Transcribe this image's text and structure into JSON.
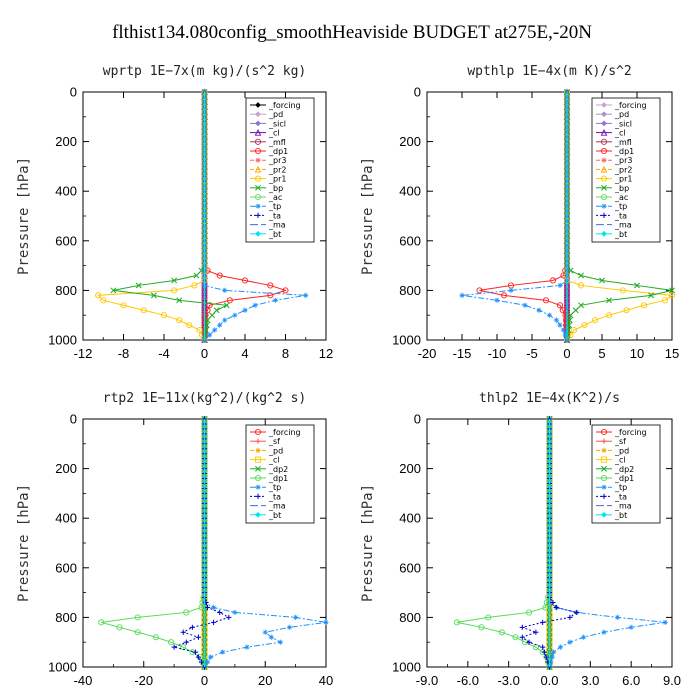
{
  "title": "flthist134.080config_smoothHeaviside  BUDGET at275E,-20N",
  "chart_data": [
    {
      "type": "line",
      "panel": "top-left",
      "title": "wprtp  1E−7x(m kg)/(s^2 kg)",
      "ylabel": "Pressure [hPa]",
      "xlim": [
        -12,
        12
      ],
      "ylim": [
        1000,
        0
      ],
      "xticks": [
        "-12",
        "-8",
        "-4",
        "0",
        "4",
        "8",
        "12"
      ],
      "yticks": [
        "0",
        "200",
        "400",
        "600",
        "800",
        "1000"
      ],
      "legend_position": "top-right",
      "series": [
        {
          "name": "_forcing",
          "color": "#000000",
          "dash": "",
          "marker": "diamond",
          "p": [
            0,
            1000
          ],
          "v": [
            0,
            0
          ]
        },
        {
          "name": "_pd",
          "color": "#c8a2c8",
          "dash": "",
          "marker": "diamond",
          "p": [
            0,
            1000
          ],
          "v": [
            0,
            0
          ]
        },
        {
          "name": "_sicl",
          "color": "#9370db",
          "dash": "",
          "marker": "diamond",
          "p": [
            0,
            1000
          ],
          "v": [
            0,
            0
          ]
        },
        {
          "name": "_cl",
          "color": "#6a0dad",
          "dash": "",
          "marker": "triangle",
          "p": [
            0,
            1000
          ],
          "v": [
            0,
            0
          ]
        },
        {
          "name": "_mfl",
          "color": "#b03060",
          "dash": "",
          "marker": "circle",
          "p": [
            0,
            1000
          ],
          "v": [
            0,
            0
          ]
        },
        {
          "name": "_dp1",
          "color": "#ff2020",
          "dash": "",
          "marker": "circle",
          "p": [
            700,
            720,
            740,
            760,
            780,
            800,
            820,
            840,
            860,
            900,
            1000
          ],
          "v": [
            0,
            0.3,
            1.5,
            4.0,
            6.5,
            8.0,
            6.5,
            2.5,
            0.5,
            0.1,
            0
          ]
        },
        {
          "name": "_pr3",
          "color": "#ff6060",
          "dash": "4,2",
          "marker": "star",
          "p": [
            0,
            1000
          ],
          "v": [
            0,
            0
          ]
        },
        {
          "name": "_pr2",
          "color": "#ffa500",
          "dash": "4,2",
          "marker": "triangle",
          "p": [
            0,
            1000
          ],
          "v": [
            0,
            0
          ]
        },
        {
          "name": "_pr1",
          "color": "#ffc800",
          "dash": "",
          "marker": "circle",
          "p": [
            700,
            760,
            780,
            800,
            820,
            840,
            860,
            880,
            900,
            920,
            940,
            960,
            1000
          ],
          "v": [
            0,
            0,
            -1.0,
            -3.0,
            -10.5,
            -10.0,
            -8.0,
            -6.0,
            -4.0,
            -2.5,
            -1.5,
            -0.5,
            0
          ]
        },
        {
          "name": "_bp",
          "color": "#1faa1f",
          "dash": "",
          "marker": "x",
          "p": [
            700,
            720,
            740,
            760,
            780,
            800,
            820,
            840,
            860,
            880,
            920,
            1000
          ],
          "v": [
            0,
            -0.3,
            -0.8,
            -3.0,
            -6.5,
            -9.0,
            -5.0,
            -2.5,
            2.2,
            1.2,
            0.3,
            0
          ]
        },
        {
          "name": "_ac",
          "color": "#66dd66",
          "dash": "",
          "marker": "circle",
          "p": [
            0,
            1000
          ],
          "v": [
            0,
            0
          ]
        },
        {
          "name": "_tp",
          "color": "#1e90ff",
          "dash": "6,2,2,2",
          "marker": "star",
          "p": [
            780,
            800,
            820,
            840,
            860,
            880,
            900,
            920,
            960,
            1000
          ],
          "v": [
            0,
            2.0,
            10.0,
            7.0,
            5.0,
            4.0,
            3.0,
            2.0,
            1.0,
            0
          ]
        },
        {
          "name": "_ta",
          "color": "#0000cd",
          "dash": "2,2",
          "marker": "plus",
          "p": [
            0,
            1000
          ],
          "v": [
            0,
            0
          ]
        },
        {
          "name": "_ma",
          "color": "#4169e1",
          "dash": "8,3",
          "marker": "none",
          "p": [
            0,
            1000
          ],
          "v": [
            0,
            0
          ]
        },
        {
          "name": "_bt",
          "color": "#00e5ee",
          "dash": "",
          "marker": "diamond",
          "p": [
            0,
            1000
          ],
          "v": [
            0,
            0
          ]
        }
      ]
    },
    {
      "type": "line",
      "panel": "top-right",
      "title": "wpthlp  1E−4x(m K)/s^2",
      "ylabel": "Pressure [hPa]",
      "xlim": [
        -20,
        15
      ],
      "ylim": [
        1000,
        0
      ],
      "xticks": [
        "-20",
        "-15",
        "-10",
        "-5",
        "0",
        "5",
        "10",
        "15"
      ],
      "yticks": [
        "0",
        "200",
        "400",
        "600",
        "800",
        "1000"
      ],
      "legend_position": "top-right",
      "series": [
        {
          "name": "_forcing",
          "color": "#c8a2c8",
          "dash": "",
          "marker": "diamond",
          "p": [
            0,
            1000
          ],
          "v": [
            0,
            0
          ]
        },
        {
          "name": "_pd",
          "color": "#b08ec8",
          "dash": "",
          "marker": "diamond",
          "p": [
            0,
            1000
          ],
          "v": [
            0,
            0
          ]
        },
        {
          "name": "_sicl",
          "color": "#9370db",
          "dash": "",
          "marker": "diamond",
          "p": [
            0,
            1000
          ],
          "v": [
            0,
            0
          ]
        },
        {
          "name": "_cl",
          "color": "#6a0dad",
          "dash": "",
          "marker": "triangle",
          "p": [
            0,
            1000
          ],
          "v": [
            0,
            0
          ]
        },
        {
          "name": "_mfl",
          "color": "#b03060",
          "dash": "",
          "marker": "circle",
          "p": [
            0,
            1000
          ],
          "v": [
            0,
            0
          ]
        },
        {
          "name": "_dp1",
          "color": "#ff2020",
          "dash": "",
          "marker": "circle",
          "p": [
            700,
            740,
            760,
            780,
            800,
            820,
            840,
            860,
            900,
            1000
          ],
          "v": [
            0,
            -0.5,
            -2.0,
            -8.0,
            -12.5,
            -9.0,
            -3.0,
            -1.0,
            -0.2,
            0
          ]
        },
        {
          "name": "_pr3",
          "color": "#ff6060",
          "dash": "4,2",
          "marker": "star",
          "p": [
            0,
            1000
          ],
          "v": [
            0,
            0
          ]
        },
        {
          "name": "_pr2",
          "color": "#ffa500",
          "dash": "4,2",
          "marker": "triangle",
          "p": [
            0,
            1000
          ],
          "v": [
            0,
            0
          ]
        },
        {
          "name": "_pr1",
          "color": "#ffc800",
          "dash": "",
          "marker": "circle",
          "p": [
            760,
            780,
            800,
            820,
            840,
            860,
            880,
            900,
            920,
            940,
            960,
            1000
          ],
          "v": [
            0,
            2.0,
            8.0,
            15.0,
            14.0,
            11.0,
            8.5,
            6.0,
            4.0,
            2.5,
            1.0,
            0
          ]
        },
        {
          "name": "_bp",
          "color": "#1faa1f",
          "dash": "",
          "marker": "x",
          "p": [
            700,
            720,
            740,
            760,
            780,
            800,
            820,
            840,
            860,
            900,
            1000
          ],
          "v": [
            0,
            0.5,
            2.0,
            5.0,
            10.0,
            15.0,
            12.0,
            6.0,
            2.0,
            0.5,
            0
          ]
        },
        {
          "name": "_ac",
          "color": "#66dd66",
          "dash": "",
          "marker": "circle",
          "p": [
            0,
            1000
          ],
          "v": [
            0,
            0
          ]
        },
        {
          "name": "_tp",
          "color": "#1e90ff",
          "dash": "6,2,2,2",
          "marker": "star",
          "p": [
            760,
            780,
            800,
            820,
            840,
            860,
            880,
            900,
            920,
            960,
            1000
          ],
          "v": [
            0,
            -1.0,
            -8.0,
            -15.0,
            -10.0,
            -6.0,
            -4.0,
            -2.5,
            -1.5,
            -0.5,
            0
          ]
        },
        {
          "name": "_ta",
          "color": "#0000cd",
          "dash": "2,2",
          "marker": "plus",
          "p": [
            0,
            1000
          ],
          "v": [
            0,
            0
          ]
        },
        {
          "name": "_ma",
          "color": "#4169e1",
          "dash": "8,3",
          "marker": "none",
          "p": [
            0,
            1000
          ],
          "v": [
            0,
            0
          ]
        },
        {
          "name": "_bt",
          "color": "#00e5ee",
          "dash": "",
          "marker": "diamond",
          "p": [
            0,
            1000
          ],
          "v": [
            0,
            0
          ]
        }
      ]
    },
    {
      "type": "line",
      "panel": "bottom-left",
      "title": "rtp2  1E−11x(kg^2)/(kg^2 s)",
      "ylabel": "Pressure [hPa]",
      "xlim": [
        -40,
        40
      ],
      "ylim": [
        1000,
        0
      ],
      "xticks": [
        "-40",
        "-20",
        "0",
        "20",
        "40"
      ],
      "yticks": [
        "0",
        "200",
        "400",
        "600",
        "800",
        "1000"
      ],
      "legend_position": "top-right",
      "series": [
        {
          "name": "_forcing",
          "color": "#ff2020",
          "dash": "",
          "marker": "circle",
          "p": [
            0,
            1000
          ],
          "v": [
            0,
            0
          ]
        },
        {
          "name": "_sf",
          "color": "#ff5050",
          "dash": "",
          "marker": "plus",
          "p": [
            0,
            1000
          ],
          "v": [
            0,
            0
          ]
        },
        {
          "name": "_pd",
          "color": "#ffa500",
          "dash": "4,2",
          "marker": "star",
          "p": [
            0,
            1000
          ],
          "v": [
            0,
            0
          ]
        },
        {
          "name": "_cl",
          "color": "#ffc800",
          "dash": "",
          "marker": "square",
          "p": [
            0,
            1000
          ],
          "v": [
            0,
            0
          ]
        },
        {
          "name": "_dp2",
          "color": "#1faa1f",
          "dash": "",
          "marker": "x",
          "p": [
            0,
            1000
          ],
          "v": [
            0,
            0
          ]
        },
        {
          "name": "_dp1",
          "color": "#55dd55",
          "dash": "",
          "marker": "circle",
          "p": [
            700,
            760,
            780,
            800,
            820,
            840,
            860,
            880,
            900,
            920,
            940,
            960,
            1000
          ],
          "v": [
            0,
            -1.0,
            -6.0,
            -22.0,
            -34.0,
            -28.0,
            -22.0,
            -16.0,
            -11.0,
            -7.0,
            -4.0,
            -1.5,
            0
          ]
        },
        {
          "name": "_tp",
          "color": "#1e90ff",
          "dash": "6,2,2,2",
          "marker": "star",
          "p": [
            740,
            760,
            780,
            800,
            820,
            840,
            860,
            880,
            900,
            920,
            940,
            960,
            1000
          ],
          "v": [
            0,
            3.0,
            10.0,
            30.0,
            40.0,
            28.0,
            20.0,
            22.0,
            25.0,
            14.0,
            6.0,
            2.0,
            0
          ]
        },
        {
          "name": "_ta",
          "color": "#0000cd",
          "dash": "2,2",
          "marker": "plus",
          "p": [
            720,
            760,
            780,
            800,
            820,
            840,
            860,
            880,
            900,
            920,
            940,
            1000
          ],
          "v": [
            0,
            1.0,
            5.0,
            8.0,
            3.0,
            -4.0,
            -7.0,
            -2.0,
            -6.0,
            -10.0,
            -3.0,
            0
          ]
        },
        {
          "name": "_ma",
          "color": "#4169e1",
          "dash": "8,3",
          "marker": "none",
          "p": [
            0,
            1000
          ],
          "v": [
            0,
            0
          ]
        },
        {
          "name": "_bt",
          "color": "#00e5ee",
          "dash": "",
          "marker": "diamond",
          "p": [
            0,
            1000
          ],
          "v": [
            0,
            0
          ]
        }
      ]
    },
    {
      "type": "line",
      "panel": "bottom-right",
      "title": "thlp2  1E−4x(K^2)/s",
      "ylabel": "Pressure [hPa]",
      "xlim": [
        -9,
        9
      ],
      "ylim": [
        1000,
        0
      ],
      "xticks": [
        "-9.0",
        "-6.0",
        "-3.0",
        "0.0",
        "3.0",
        "6.0",
        "9.0"
      ],
      "yticks": [
        "0",
        "200",
        "400",
        "600",
        "800",
        "1000"
      ],
      "legend_position": "top-right",
      "series": [
        {
          "name": "_forcing",
          "color": "#ff2020",
          "dash": "",
          "marker": "circle",
          "p": [
            0,
            1000
          ],
          "v": [
            0,
            0
          ]
        },
        {
          "name": "_sf",
          "color": "#ff5050",
          "dash": "",
          "marker": "plus",
          "p": [
            0,
            1000
          ],
          "v": [
            0,
            0
          ]
        },
        {
          "name": "_pd",
          "color": "#ffa500",
          "dash": "4,2",
          "marker": "star",
          "p": [
            0,
            1000
          ],
          "v": [
            0,
            0
          ]
        },
        {
          "name": "_cl",
          "color": "#ffc800",
          "dash": "",
          "marker": "square",
          "p": [
            0,
            1000
          ],
          "v": [
            0,
            0
          ]
        },
        {
          "name": "_dp2",
          "color": "#1faa1f",
          "dash": "",
          "marker": "x",
          "p": [
            0,
            1000
          ],
          "v": [
            0,
            0
          ]
        },
        {
          "name": "_dp1",
          "color": "#55dd55",
          "dash": "",
          "marker": "circle",
          "p": [
            700,
            760,
            780,
            800,
            820,
            840,
            860,
            880,
            900,
            920,
            940,
            960,
            1000
          ],
          "v": [
            0,
            -0.3,
            -1.5,
            -4.5,
            -6.8,
            -5.0,
            -3.5,
            -2.5,
            -1.8,
            -1.0,
            -0.5,
            -0.2,
            0
          ]
        },
        {
          "name": "_tp",
          "color": "#1e90ff",
          "dash": "6,2,2,2",
          "marker": "star",
          "p": [
            740,
            760,
            780,
            800,
            820,
            840,
            860,
            880,
            900,
            920,
            940,
            1000
          ],
          "v": [
            0,
            0.5,
            2.0,
            5.0,
            8.5,
            6.0,
            4.0,
            2.5,
            1.5,
            0.8,
            0.3,
            0
          ]
        },
        {
          "name": "_ta",
          "color": "#0000cd",
          "dash": "2,2",
          "marker": "plus",
          "p": [
            720,
            760,
            780,
            800,
            820,
            840,
            860,
            880,
            900,
            920,
            1000
          ],
          "v": [
            0,
            0.5,
            2.0,
            1.5,
            -0.5,
            -2.0,
            -1.0,
            -2.0,
            -1.5,
            -0.5,
            0
          ]
        },
        {
          "name": "_ma",
          "color": "#4169e1",
          "dash": "8,3",
          "marker": "none",
          "p": [
            0,
            1000
          ],
          "v": [
            0,
            0
          ]
        },
        {
          "name": "_bt",
          "color": "#00e5ee",
          "dash": "",
          "marker": "diamond",
          "p": [
            0,
            1000
          ],
          "v": [
            0,
            0
          ]
        }
      ]
    }
  ]
}
